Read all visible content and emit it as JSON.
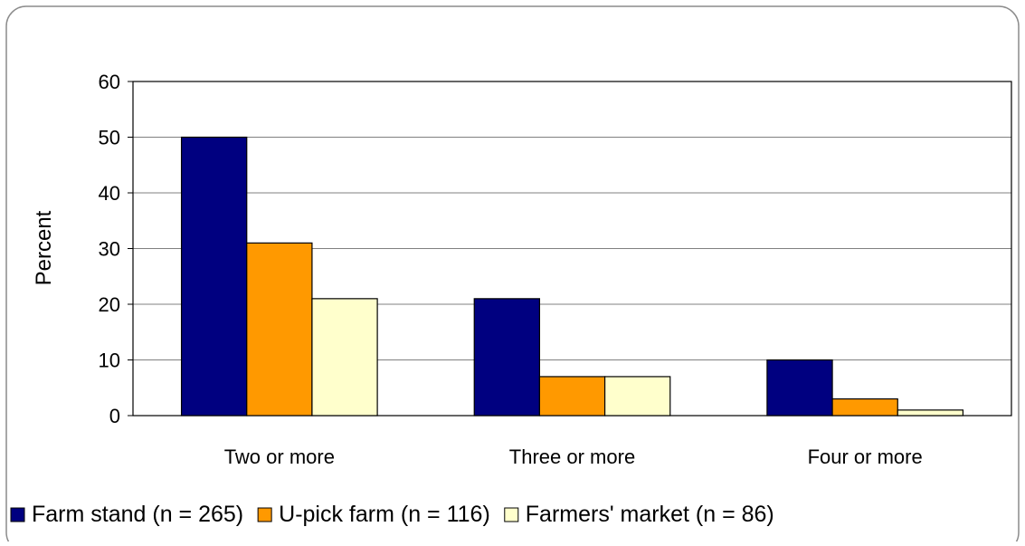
{
  "chart_data": {
    "type": "bar",
    "title": "",
    "xlabel": "",
    "ylabel": "Percent",
    "ylim": [
      0,
      60
    ],
    "yticks": [
      0,
      10,
      20,
      30,
      40,
      50,
      60
    ],
    "grid": true,
    "legend_position": "bottom",
    "categories": [
      "Two or more",
      "Three or more",
      "Four or more"
    ],
    "series": [
      {
        "name": "Farm stand (n = 265)",
        "color": "#000080",
        "values": [
          50,
          21,
          10
        ]
      },
      {
        "name": "U-pick farm (n = 116)",
        "color": "#ff9900",
        "values": [
          31,
          7,
          3
        ]
      },
      {
        "name": "Farmers' market (n = 86)",
        "color": "#ffffcc",
        "values": [
          21,
          7,
          1
        ]
      }
    ]
  }
}
